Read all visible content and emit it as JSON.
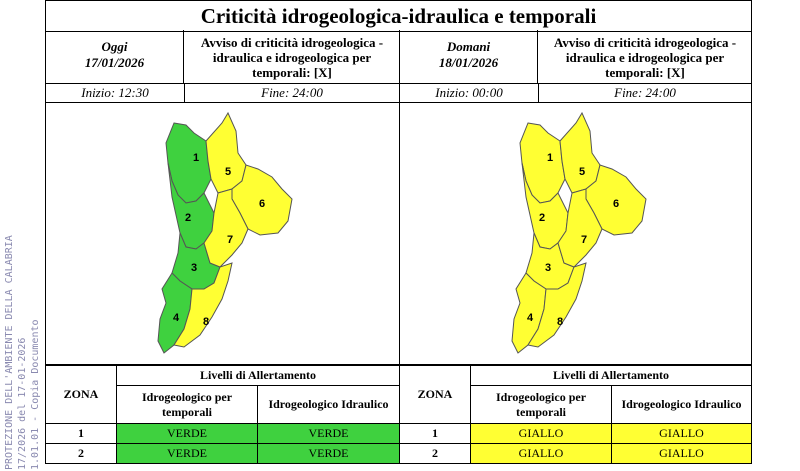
{
  "title": "Criticità idrogeologica-idraulica e temporali",
  "today": {
    "label": "Oggi",
    "date": "17/01/2026",
    "avviso_line1": "Avviso di criticità idrogeologica -",
    "avviso_line2": "idraulica e idrogeologica per",
    "avviso_line3": "temporali: [X]",
    "inizio": "Inizio: 12:30",
    "fine": "Fine: 24:00"
  },
  "tomorrow": {
    "label": "Domani",
    "date": "18/01/2026",
    "avviso_line1": "Avviso di criticità idrogeologica -",
    "avviso_line2": "idraulica e idrogeologica per",
    "avviso_line3": "temporali: [X]",
    "inizio": "Inizio: 00:00",
    "fine": "Fine: 24:00"
  },
  "zones": [
    "1",
    "2",
    "3",
    "4",
    "5",
    "6",
    "7",
    "8"
  ],
  "colors": {
    "verde": "#3fd13f",
    "giallo": "#ffff33",
    "border": "#555555"
  },
  "table": {
    "zona_header": "ZONA",
    "livelli_header": "Livelli di Allertamento",
    "col1_line1": "Idrogeologico per",
    "col1_line2": "temporali",
    "col2": "Idrogeologico Idraulico",
    "today_rows": [
      {
        "zona": "1",
        "a": "VERDE",
        "b": "VERDE"
      },
      {
        "zona": "2",
        "a": "VERDE",
        "b": "VERDE"
      }
    ],
    "tomorrow_rows": [
      {
        "zona": "1",
        "a": "GIALLO",
        "b": "GIALLO"
      },
      {
        "zona": "2",
        "a": "GIALLO",
        "b": "GIALLO"
      }
    ]
  },
  "watermark": {
    "line1": "PROTEZIONE DELL'AMBIENTE DELLA CALABRIA",
    "line2": "17/2026 del 17-01-2026",
    "line3": "1.01.01 - Copia Documento"
  }
}
